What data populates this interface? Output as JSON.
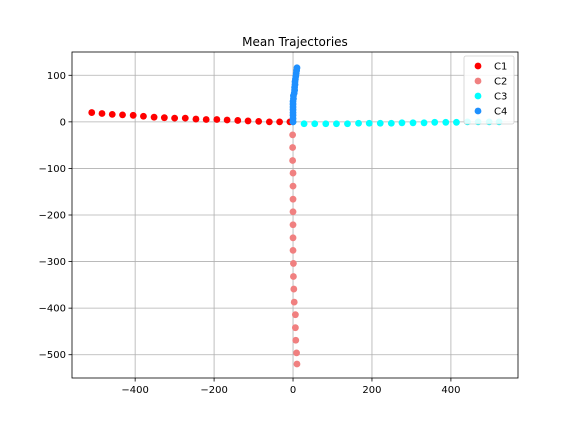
{
  "chart_data": {
    "type": "scatter",
    "title": "Mean Trajectories",
    "xlabel": "",
    "ylabel": "",
    "xlim": [
      -560,
      570
    ],
    "ylim": [
      -550,
      150
    ],
    "x_ticks": [
      -400,
      -200,
      0,
      200,
      400
    ],
    "y_ticks": [
      100,
      0,
      -100,
      -200,
      -300,
      -400,
      -500
    ],
    "x_tick_labels": [
      "−400",
      "−200",
      "0",
      "200",
      "400"
    ],
    "y_tick_labels": [
      "100",
      "0",
      "−100",
      "−200",
      "−300",
      "−400",
      "−500"
    ],
    "grid": true,
    "legend_position": "top-right",
    "series": [
      {
        "name": "C1",
        "color": "#ff0000",
        "points": [
          [
            -510,
            20
          ],
          [
            -484,
            18
          ],
          [
            -458,
            16
          ],
          [
            -432,
            15
          ],
          [
            -405,
            14
          ],
          [
            -379,
            12
          ],
          [
            -352,
            10
          ],
          [
            -326,
            9
          ],
          [
            -300,
            8
          ],
          [
            -273,
            8
          ],
          [
            -246,
            6
          ],
          [
            -220,
            5
          ],
          [
            -193,
            5
          ],
          [
            -167,
            4
          ],
          [
            -140,
            3
          ],
          [
            -114,
            2
          ],
          [
            -87,
            1
          ],
          [
            -60,
            0
          ],
          [
            -34,
            0
          ],
          [
            -8,
            0
          ]
        ]
      },
      {
        "name": "C2",
        "color": "#f08080",
        "points": [
          [
            0,
            0
          ],
          [
            -1,
            -28
          ],
          [
            -1,
            -55
          ],
          [
            -1,
            -83
          ],
          [
            0,
            -110
          ],
          [
            0,
            -138
          ],
          [
            0,
            -166
          ],
          [
            0,
            -193
          ],
          [
            0,
            -221
          ],
          [
            0,
            -249
          ],
          [
            0,
            -276
          ],
          [
            1,
            -304
          ],
          [
            1,
            -332
          ],
          [
            2,
            -359
          ],
          [
            3,
            -387
          ],
          [
            6,
            -414
          ],
          [
            6,
            -442
          ],
          [
            7,
            -469
          ],
          [
            9,
            -496
          ],
          [
            10,
            -520
          ]
        ]
      },
      {
        "name": "C3",
        "color": "#00ffff",
        "points": [
          [
            0,
            0
          ],
          [
            28,
            -4
          ],
          [
            55,
            -4
          ],
          [
            83,
            -4
          ],
          [
            110,
            -4
          ],
          [
            138,
            -4
          ],
          [
            166,
            -3
          ],
          [
            193,
            -3
          ],
          [
            221,
            -3
          ],
          [
            249,
            -3
          ],
          [
            276,
            -2
          ],
          [
            304,
            -2
          ],
          [
            332,
            -2
          ],
          [
            359,
            -1
          ],
          [
            387,
            -1
          ],
          [
            414,
            -1
          ],
          [
            442,
            0
          ],
          [
            469,
            0
          ],
          [
            497,
            0
          ],
          [
            522,
            0
          ]
        ]
      },
      {
        "name": "C4",
        "color": "#1e90ff",
        "points": [
          [
            0,
            0
          ],
          [
            0,
            7
          ],
          [
            0,
            14
          ],
          [
            0,
            20
          ],
          [
            0,
            26
          ],
          [
            0,
            32
          ],
          [
            0,
            38
          ],
          [
            0,
            44
          ],
          [
            1,
            50
          ],
          [
            1,
            56
          ],
          [
            3,
            62
          ],
          [
            4,
            68
          ],
          [
            4,
            74
          ],
          [
            5,
            80
          ],
          [
            5,
            86
          ],
          [
            6,
            92
          ],
          [
            7,
            98
          ],
          [
            8,
            104
          ],
          [
            9,
            110
          ],
          [
            10,
            116
          ]
        ]
      }
    ]
  }
}
